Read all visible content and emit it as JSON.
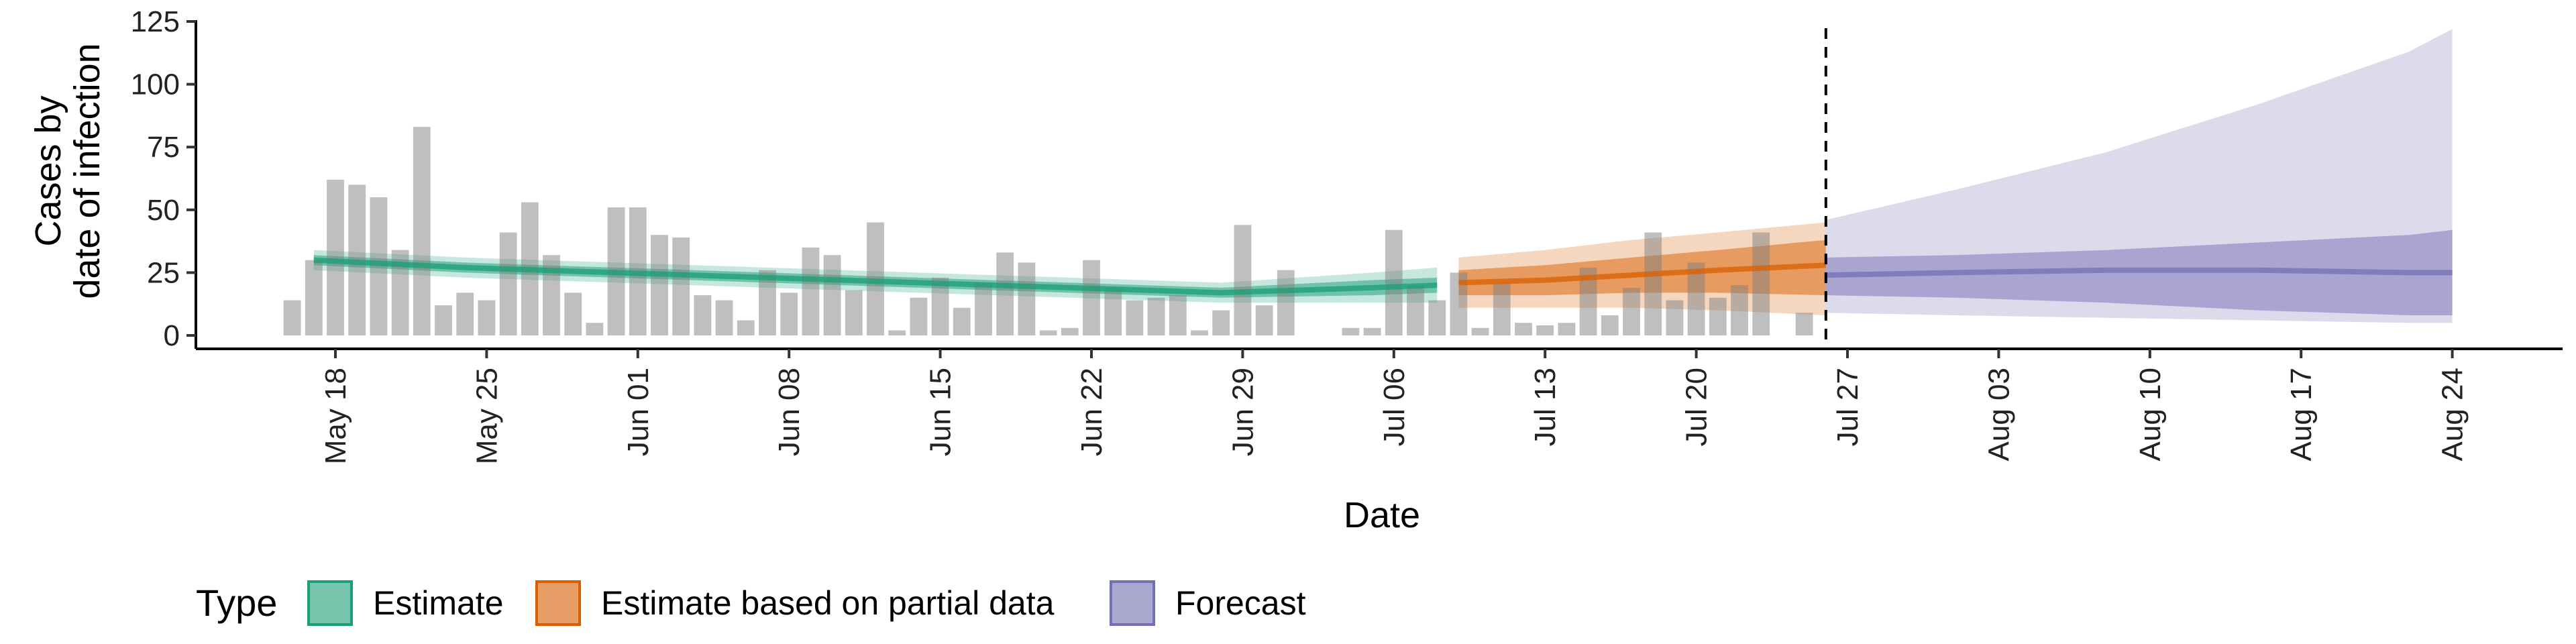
{
  "chart_data": {
    "type": "bar",
    "xlabel": "Date",
    "ylabel": [
      "Cases by",
      "date of infection"
    ],
    "ylim": [
      0,
      125
    ],
    "y_ticks": [
      0,
      25,
      50,
      75,
      100,
      125
    ],
    "x_ticks": [
      {
        "date": "2020-05-18",
        "label": "May 18"
      },
      {
        "date": "2020-05-25",
        "label": "May 25"
      },
      {
        "date": "2020-06-01",
        "label": "Jun 01"
      },
      {
        "date": "2020-06-08",
        "label": "Jun 08"
      },
      {
        "date": "2020-06-15",
        "label": "Jun 15"
      },
      {
        "date": "2020-06-22",
        "label": "Jun 22"
      },
      {
        "date": "2020-06-29",
        "label": "Jun 29"
      },
      {
        "date": "2020-07-06",
        "label": "Jul 06"
      },
      {
        "date": "2020-07-13",
        "label": "Jul 13"
      },
      {
        "date": "2020-07-20",
        "label": "Jul 20"
      },
      {
        "date": "2020-07-27",
        "label": "Jul 27"
      },
      {
        "date": "2020-08-03",
        "label": "Aug 03"
      },
      {
        "date": "2020-08-10",
        "label": "Aug 10"
      },
      {
        "date": "2020-08-17",
        "label": "Aug 17"
      },
      {
        "date": "2020-08-24",
        "label": "Aug 24"
      }
    ],
    "grid": false,
    "forecast_start_line": "2020-07-26",
    "observed_cases": {
      "start_date": "2020-05-16",
      "values": [
        14,
        30,
        62,
        60,
        55,
        34,
        83,
        12,
        17,
        14,
        41,
        53,
        32,
        17,
        5,
        51,
        51,
        40,
        39,
        16,
        14,
        6,
        26,
        17,
        35,
        32,
        18,
        45,
        2,
        15,
        23,
        11,
        21,
        33,
        29,
        2,
        3,
        30,
        19,
        14,
        15,
        16,
        2,
        10,
        44,
        12,
        26,
        0,
        0,
        3,
        3,
        42,
        20,
        14,
        25,
        3,
        21,
        5,
        4,
        5,
        27,
        8,
        19,
        41,
        14,
        29,
        15,
        20,
        41,
        0,
        9
      ]
    },
    "series": [
      {
        "name": "Estimate",
        "color": "#1b9e77",
        "dates": [
          "2020-05-17",
          "2020-05-24",
          "2020-05-31",
          "2020-06-07",
          "2020-06-14",
          "2020-06-21",
          "2020-06-28",
          "2020-07-05",
          "2020-07-08"
        ],
        "median": [
          30,
          27,
          25,
          23,
          21,
          19,
          17,
          19,
          20
        ],
        "inner": [
          [
            28,
            32
          ],
          [
            25,
            29
          ],
          [
            23,
            27
          ],
          [
            21,
            25
          ],
          [
            19,
            23
          ],
          [
            17,
            21
          ],
          [
            15,
            19
          ],
          [
            16,
            22
          ],
          [
            17,
            23
          ]
        ],
        "outer": [
          [
            26,
            34
          ],
          [
            23,
            31
          ],
          [
            21,
            29
          ],
          [
            19,
            27
          ],
          [
            17,
            25
          ],
          [
            15,
            23
          ],
          [
            13,
            21
          ],
          [
            13,
            25
          ],
          [
            13,
            27
          ]
        ]
      },
      {
        "name": "Estimate based on partial data",
        "color": "#d95f02",
        "dates": [
          "2020-07-09",
          "2020-07-13",
          "2020-07-17",
          "2020-07-21",
          "2020-07-26"
        ],
        "median": [
          21,
          22,
          24,
          26,
          28
        ],
        "inner": [
          [
            16,
            26
          ],
          [
            16,
            28
          ],
          [
            17,
            31
          ],
          [
            17,
            34
          ],
          [
            16,
            38
          ]
        ],
        "outer": [
          [
            11,
            31
          ],
          [
            11,
            34
          ],
          [
            11,
            38
          ],
          [
            10,
            41
          ],
          [
            8,
            45
          ]
        ]
      },
      {
        "name": "Forecast",
        "color": "#7570b3",
        "dates": [
          "2020-07-26",
          "2020-08-01",
          "2020-08-08",
          "2020-08-15",
          "2020-08-22",
          "2020-08-24"
        ],
        "median": [
          24,
          25,
          26,
          26,
          25,
          25
        ],
        "inner": [
          [
            16,
            31
          ],
          [
            15,
            32
          ],
          [
            13,
            34
          ],
          [
            10,
            37
          ],
          [
            8,
            40
          ],
          [
            8,
            42
          ]
        ],
        "outer": [
          [
            9,
            46
          ],
          [
            8,
            58
          ],
          [
            7,
            73
          ],
          [
            6,
            92
          ],
          [
            5,
            113
          ],
          [
            5,
            122
          ]
        ]
      }
    ],
    "legend": {
      "title": "Type",
      "position": "bottom",
      "entries": [
        "Estimate",
        "Estimate based on partial data",
        "Forecast"
      ]
    }
  }
}
